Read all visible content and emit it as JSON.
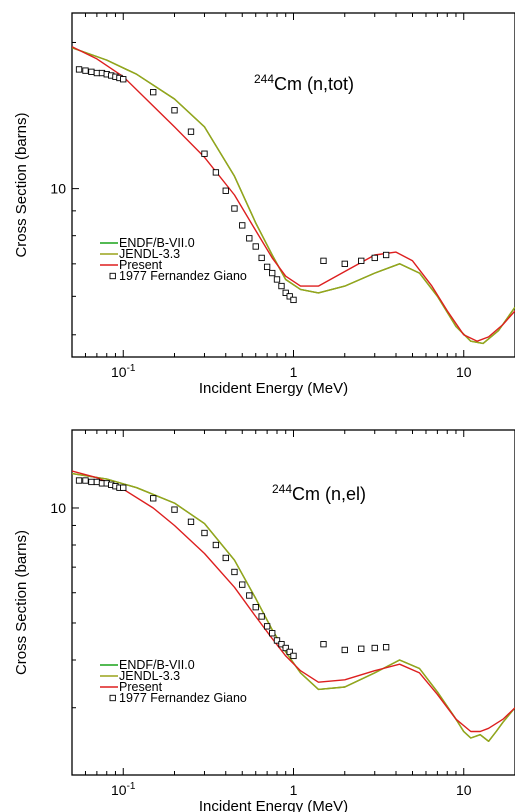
{
  "chart_data": [
    {
      "type": "line",
      "annotation": {
        "sup": "244",
        "text": "Cm (n,tot)"
      },
      "xlabel": "Incident Energy (MeV)",
      "ylabel": "Cross Section (barns)",
      "xscale": "log",
      "yscale": "log",
      "xlim": [
        0.05,
        20
      ],
      "ylim": [
        4.5,
        23
      ],
      "xticks": [
        {
          "value": 0.1,
          "base": "10",
          "exp": "-1"
        },
        {
          "value": 1,
          "base": "1",
          "exp": ""
        },
        {
          "value": 10,
          "base": "10",
          "exp": ""
        }
      ],
      "yticks": [
        {
          "value": 10,
          "label": "10"
        }
      ],
      "legend": {
        "placement": "lower-left",
        "entries": [
          "ENDF/B-VII.0",
          "JENDL-3.3",
          "Present",
          "1977 Fernandez Giano"
        ]
      },
      "series": [
        {
          "name": "ENDF/B-VII.0",
          "color": "#1aa31a",
          "x": [
            0.05,
            0.08,
            0.12,
            0.2,
            0.3,
            0.45,
            0.6,
            0.75,
            0.9,
            1.1,
            1.4,
            2,
            3,
            4.2,
            5.5,
            7,
            9,
            11,
            13,
            16,
            20
          ],
          "y": [
            19.5,
            18.4,
            17.2,
            15.3,
            13.4,
            10.6,
            8.5,
            7.3,
            6.5,
            6.2,
            6.1,
            6.3,
            6.7,
            7.0,
            6.7,
            6.0,
            5.2,
            4.85,
            4.8,
            5.1,
            5.7
          ]
        },
        {
          "name": "JENDL-3.3",
          "color": "#9aa31a",
          "x": [
            0.05,
            0.08,
            0.12,
            0.2,
            0.3,
            0.45,
            0.6,
            0.75,
            0.9,
            1.1,
            1.4,
            2,
            3,
            4.2,
            5.5,
            7,
            9,
            11,
            13,
            16,
            20
          ],
          "y": [
            19.5,
            18.4,
            17.2,
            15.3,
            13.4,
            10.6,
            8.5,
            7.3,
            6.5,
            6.2,
            6.1,
            6.3,
            6.7,
            7.0,
            6.7,
            6.0,
            5.2,
            4.85,
            4.8,
            5.1,
            5.7
          ]
        },
        {
          "name": "Present",
          "color": "#dd1f1f",
          "x": [
            0.05,
            0.07,
            0.1,
            0.15,
            0.2,
            0.3,
            0.45,
            0.6,
            0.75,
            0.9,
            1.1,
            1.4,
            2,
            3,
            4,
            5,
            6.5,
            8,
            10,
            12,
            14,
            17,
            20
          ],
          "y": [
            19.6,
            18.5,
            17.0,
            14.8,
            13.4,
            11.6,
            9.7,
            8.2,
            7.2,
            6.6,
            6.3,
            6.3,
            6.75,
            7.3,
            7.4,
            7.1,
            6.3,
            5.6,
            5.0,
            4.85,
            4.95,
            5.25,
            5.6
          ]
        },
        {
          "name": "1977 Fernandez Giano",
          "color": "#000000",
          "marker": "open-square",
          "x": [
            0.055,
            0.06,
            0.065,
            0.07,
            0.075,
            0.08,
            0.085,
            0.09,
            0.095,
            0.1,
            0.15,
            0.2,
            0.25,
            0.3,
            0.35,
            0.4,
            0.45,
            0.5,
            0.55,
            0.6,
            0.65,
            0.7,
            0.75,
            0.8,
            0.85,
            0.9,
            0.95,
            1.0,
            1.5,
            2.0,
            2.5,
            3.0,
            3.5
          ],
          "y": [
            17.6,
            17.5,
            17.4,
            17.3,
            17.3,
            17.2,
            17.1,
            17.0,
            16.9,
            16.8,
            15.8,
            14.5,
            13.1,
            11.8,
            10.8,
            9.9,
            9.1,
            8.4,
            7.9,
            7.6,
            7.2,
            6.9,
            6.7,
            6.5,
            6.3,
            6.1,
            6.0,
            5.9,
            7.1,
            7.0,
            7.1,
            7.2,
            7.3
          ]
        }
      ]
    },
    {
      "type": "line",
      "annotation": {
        "sup": "244",
        "text": "Cm (n,el)"
      },
      "xlabel": "Incident Energy (MeV)",
      "ylabel": "Cross Section (barns)",
      "xscale": "log",
      "yscale": "log",
      "xlim": [
        0.05,
        20
      ],
      "ylim": [
        2.0,
        16
      ],
      "xticks": [
        {
          "value": 0.1,
          "base": "10",
          "exp": "-1"
        },
        {
          "value": 1,
          "base": "1",
          "exp": ""
        },
        {
          "value": 10,
          "base": "10",
          "exp": ""
        }
      ],
      "yticks": [
        {
          "value": 10,
          "label": "10"
        }
      ],
      "legend": {
        "placement": "lower-left",
        "entries": [
          "ENDF/B-VII.0",
          "JENDL-3.3",
          "Present",
          "1977 Fernandez Giano"
        ]
      },
      "series": [
        {
          "name": "ENDF/B-VII.0",
          "color": "#1aa31a",
          "x": [
            0.05,
            0.08,
            0.12,
            0.2,
            0.3,
            0.45,
            0.6,
            0.75,
            0.9,
            1.1,
            1.4,
            2,
            3,
            4.2,
            5.5,
            7,
            9,
            10,
            11,
            12.5,
            14,
            15.5,
            17,
            20
          ],
          "y": [
            12.3,
            11.9,
            11.3,
            10.3,
            9.1,
            7.3,
            5.8,
            4.8,
            4.2,
            3.7,
            3.35,
            3.4,
            3.7,
            4.0,
            3.8,
            3.3,
            2.8,
            2.6,
            2.5,
            2.55,
            2.45,
            2.6,
            2.75,
            3.0
          ]
        },
        {
          "name": "JENDL-3.3",
          "color": "#9aa31a",
          "x": [
            0.05,
            0.08,
            0.12,
            0.2,
            0.3,
            0.45,
            0.6,
            0.75,
            0.9,
            1.1,
            1.4,
            2,
            3,
            4.2,
            5.5,
            7,
            9,
            10,
            11,
            12.5,
            14,
            15.5,
            17,
            20
          ],
          "y": [
            12.3,
            11.9,
            11.3,
            10.3,
            9.1,
            7.3,
            5.8,
            4.8,
            4.2,
            3.7,
            3.35,
            3.4,
            3.7,
            4.0,
            3.8,
            3.3,
            2.8,
            2.6,
            2.5,
            2.55,
            2.45,
            2.6,
            2.75,
            3.0
          ]
        },
        {
          "name": "Present",
          "color": "#dd1f1f",
          "x": [
            0.05,
            0.07,
            0.1,
            0.15,
            0.2,
            0.3,
            0.45,
            0.6,
            0.75,
            0.9,
            1.1,
            1.4,
            2,
            3,
            4.2,
            5.5,
            7,
            9,
            11,
            12.5,
            14,
            17,
            20
          ],
          "y": [
            12.5,
            12.0,
            11.2,
            10.0,
            9.0,
            7.6,
            6.2,
            5.2,
            4.55,
            4.1,
            3.75,
            3.5,
            3.55,
            3.75,
            3.9,
            3.7,
            3.25,
            2.8,
            2.6,
            2.6,
            2.65,
            2.8,
            3.0
          ]
        },
        {
          "name": "1977 Fernandez Giano",
          "color": "#000000",
          "marker": "open-square",
          "x": [
            0.055,
            0.06,
            0.065,
            0.07,
            0.075,
            0.08,
            0.085,
            0.09,
            0.095,
            0.1,
            0.15,
            0.2,
            0.25,
            0.3,
            0.35,
            0.4,
            0.45,
            0.5,
            0.55,
            0.6,
            0.65,
            0.7,
            0.75,
            0.8,
            0.85,
            0.9,
            0.95,
            1.0,
            1.5,
            2.0,
            2.5,
            3.0,
            3.5
          ],
          "y": [
            11.8,
            11.8,
            11.7,
            11.7,
            11.6,
            11.6,
            11.5,
            11.4,
            11.3,
            11.3,
            10.6,
            9.9,
            9.2,
            8.6,
            8.0,
            7.4,
            6.8,
            6.3,
            5.9,
            5.5,
            5.2,
            4.9,
            4.7,
            4.5,
            4.4,
            4.3,
            4.2,
            4.1,
            4.4,
            4.25,
            4.28,
            4.3,
            4.32
          ]
        }
      ]
    }
  ]
}
